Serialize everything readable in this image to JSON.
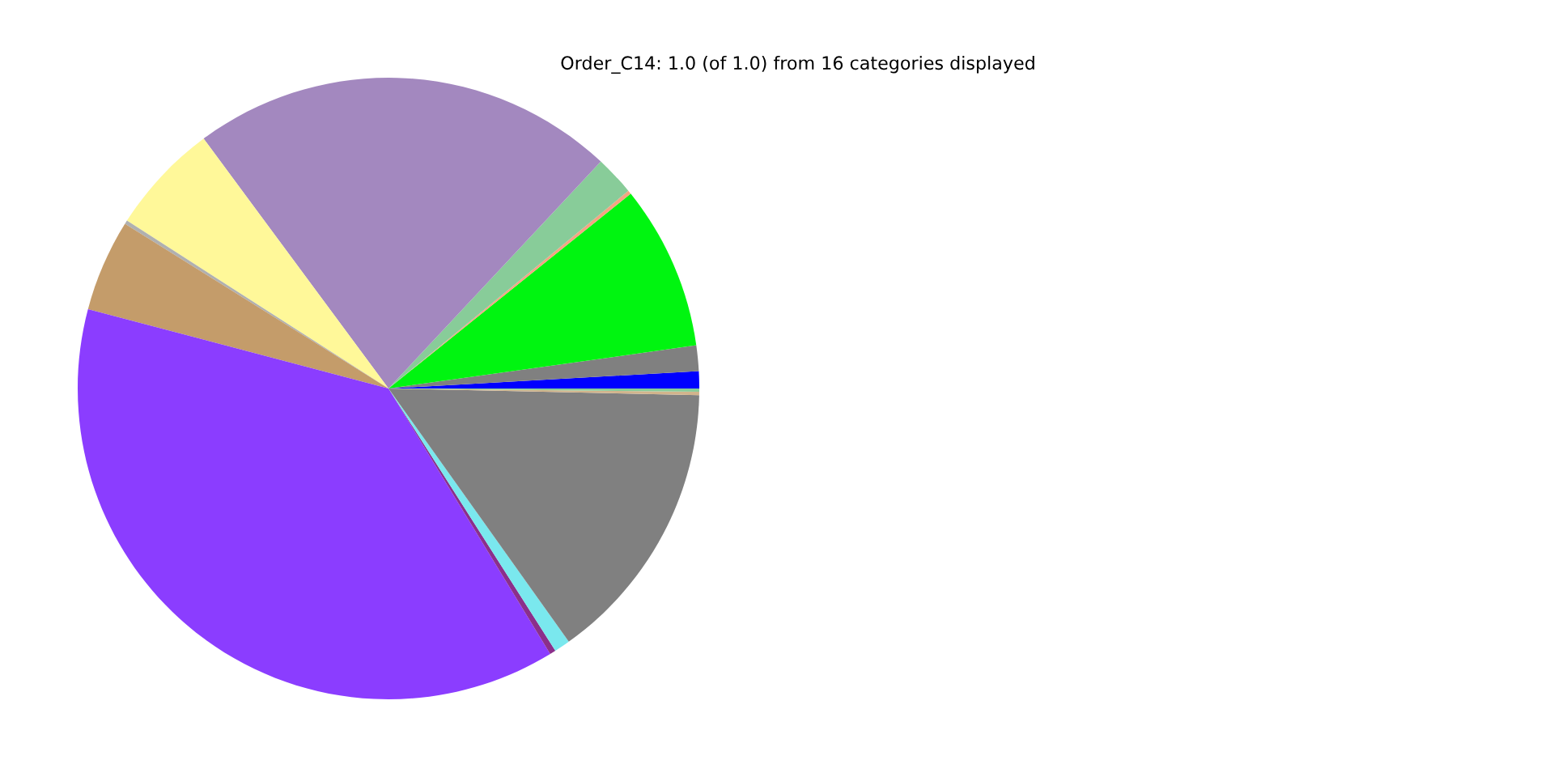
{
  "chart_data": {
    "type": "pie",
    "title": "Order_C14: 1.0 (of 1.0) from 16 categories displayed",
    "categories": [
      null,
      null,
      null,
      null,
      null,
      null,
      null,
      null,
      null,
      null,
      null,
      null,
      null,
      null,
      null
    ],
    "values": [
      0.89,
      1.33,
      8.56,
      0.19,
      2.06,
      22.11,
      5.78,
      0.19,
      4.78,
      37.82,
      0.31,
      0.83,
      14.81,
      0.17,
      0.17
    ],
    "colors": [
      "#0000ff",
      "#808080",
      "#00f510",
      "#f4a582",
      "#88cc99",
      "#a388bf",
      "#fff899",
      "#b0b0b0",
      "#c49c6a",
      "#8b3dff",
      "#8b2f8b",
      "#7ae8ee",
      "#808080",
      "#d2b48c",
      "#88cc99"
    ]
  }
}
